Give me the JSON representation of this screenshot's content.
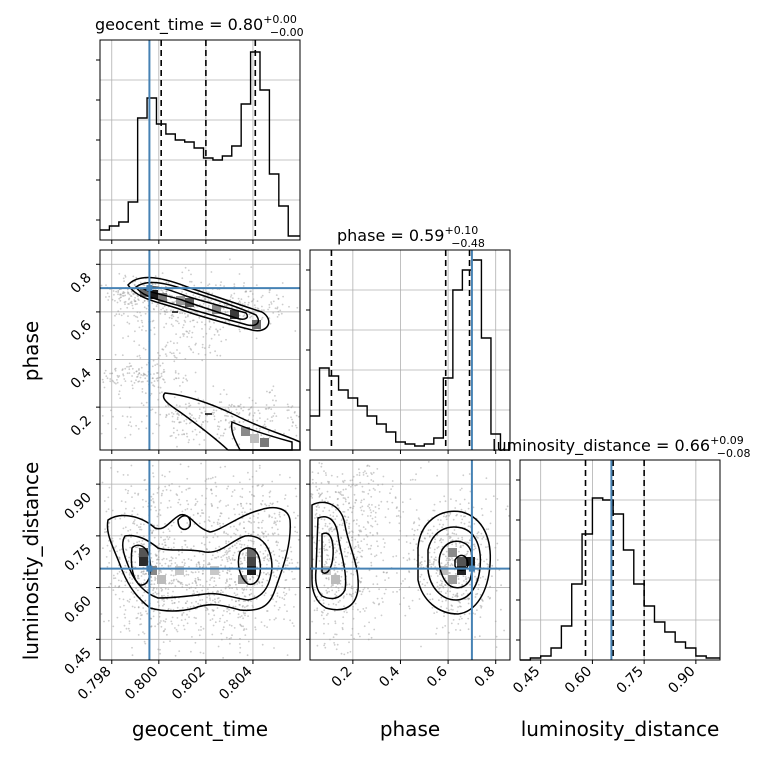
{
  "figure": {
    "type": "corner-plot",
    "truth_color": "#4682b4",
    "line_color": "#000000",
    "grid": true
  },
  "labels": {
    "geocent_time": "geocent_time",
    "phase": "phase",
    "luminosity_distance": "luminosity_distance"
  },
  "titles": {
    "geocent_time": {
      "name": "geocent_time",
      "value": "0.80",
      "plus": "+0.00",
      "minus": "−0.00"
    },
    "phase": {
      "name": "phase",
      "value": "0.59",
      "plus": "+0.10",
      "minus": "−0.48"
    },
    "luminosity_distance": {
      "name": "luminosity_distance",
      "value": "0.66",
      "plus": "+0.09",
      "minus": "−0.08"
    }
  },
  "chart_data": [
    {
      "type": "histogram",
      "parameter": "geocent_time",
      "xlim": [
        0.7975,
        0.806
      ],
      "bins": [
        0.7975,
        0.7979,
        0.7983,
        0.7987,
        0.7991,
        0.7995,
        0.7999,
        0.8003,
        0.8007,
        0.8011,
        0.8015,
        0.8019,
        0.8023,
        0.8027,
        0.8031,
        0.8035,
        0.8039,
        0.8043,
        0.8047,
        0.8051,
        0.8055,
        0.806
      ],
      "counts": [
        0.05,
        0.07,
        0.09,
        0.19,
        0.61,
        0.71,
        0.58,
        0.53,
        0.5,
        0.49,
        0.46,
        0.41,
        0.4,
        0.42,
        0.47,
        0.68,
        0.94,
        0.75,
        0.33,
        0.17,
        0.02
      ],
      "quantiles": [
        0.8001,
        0.802,
        0.8041
      ],
      "truth": 0.7996,
      "xticks": [
        "0.798",
        "0.800",
        "0.802",
        "0.804"
      ]
    },
    {
      "type": "histogram",
      "parameter": "phase",
      "xlim": [
        0.02,
        0.86
      ],
      "bins": [
        0.02,
        0.06,
        0.1,
        0.14,
        0.18,
        0.22,
        0.26,
        0.3,
        0.34,
        0.38,
        0.42,
        0.46,
        0.5,
        0.54,
        0.58,
        0.62,
        0.66,
        0.7,
        0.74,
        0.78,
        0.82,
        0.86
      ],
      "counts": [
        0.17,
        0.41,
        0.37,
        0.3,
        0.26,
        0.22,
        0.17,
        0.13,
        0.09,
        0.04,
        0.03,
        0.02,
        0.03,
        0.06,
        0.36,
        0.8,
        0.9,
        0.95,
        0.56,
        0.08,
        0.0
      ],
      "quantiles": [
        0.11,
        0.59,
        0.69
      ],
      "truth": 0.7,
      "xticks": [
        "0.2",
        "0.4",
        "0.6",
        "0.8"
      ]
    },
    {
      "type": "histogram",
      "parameter": "luminosity_distance",
      "xlim": [
        0.39,
        0.97
      ],
      "bins": [
        0.39,
        0.42,
        0.45,
        0.48,
        0.51,
        0.54,
        0.57,
        0.6,
        0.63,
        0.66,
        0.69,
        0.72,
        0.75,
        0.78,
        0.81,
        0.84,
        0.87,
        0.9,
        0.93,
        0.97
      ],
      "counts": [
        0.0,
        0.01,
        0.02,
        0.06,
        0.17,
        0.38,
        0.63,
        0.81,
        0.8,
        0.73,
        0.55,
        0.38,
        0.27,
        0.19,
        0.14,
        0.09,
        0.06,
        0.02,
        0.01
      ],
      "quantiles": [
        0.58,
        0.66,
        0.75
      ],
      "truth": 0.655,
      "xticks": [
        "0.45",
        "0.60",
        "0.75",
        "0.90"
      ]
    },
    {
      "type": "scatter-contour",
      "x": "geocent_time",
      "y": "phase",
      "xlim": [
        0.7975,
        0.806
      ],
      "ylim": [
        0.02,
        0.86
      ],
      "truth": [
        0.7996,
        0.7
      ],
      "yticks": [
        "0.2",
        "0.4",
        "0.6",
        "0.8"
      ],
      "modes": [
        [
          0.7998,
          0.69
        ],
        [
          0.8012,
          0.65
        ],
        [
          0.8035,
          0.58
        ],
        [
          0.8052,
          0.54
        ],
        [
          0.804,
          0.12
        ],
        [
          0.801,
          0.28
        ]
      ]
    },
    {
      "type": "scatter-contour",
      "x": "geocent_time",
      "y": "luminosity_distance",
      "xlim": [
        0.7975,
        0.806
      ],
      "ylim": [
        0.39,
        0.97
      ],
      "truth": [
        0.7996,
        0.655
      ],
      "yticks": [
        "0.45",
        "0.60",
        "0.75",
        "0.90"
      ],
      "modes": [
        [
          0.7997,
          0.66
        ],
        [
          0.804,
          0.66
        ],
        [
          0.802,
          0.6
        ]
      ]
    },
    {
      "type": "scatter-contour",
      "x": "phase",
      "y": "luminosity_distance",
      "xlim": [
        0.02,
        0.86
      ],
      "ylim": [
        0.39,
        0.97
      ],
      "truth": [
        0.7,
        0.655
      ],
      "modes": [
        [
          0.66,
          0.66
        ],
        [
          0.12,
          0.68
        ]
      ]
    }
  ]
}
